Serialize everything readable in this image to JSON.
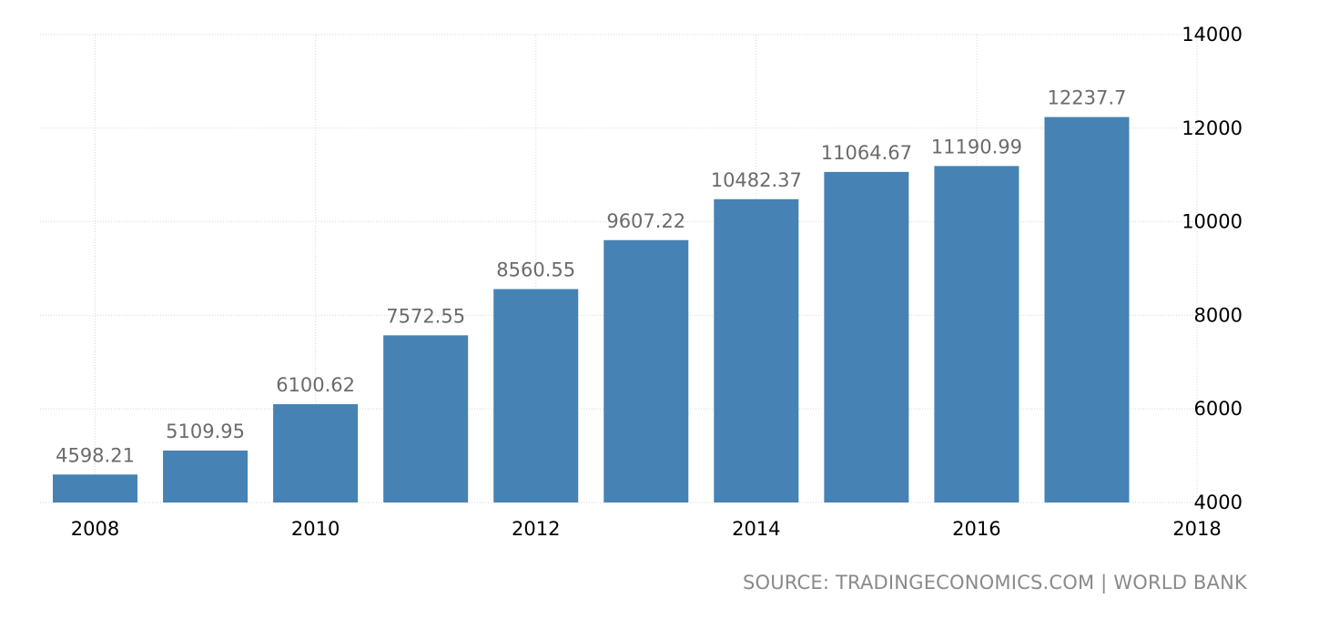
{
  "chart_data": {
    "type": "bar",
    "x": [
      2008,
      2009,
      2010,
      2011,
      2012,
      2013,
      2014,
      2015,
      2016,
      2017
    ],
    "values": [
      4598.21,
      5109.95,
      6100.62,
      7572.55,
      8560.55,
      9607.22,
      10482.37,
      11064.67,
      11190.99,
      12237.7
    ],
    "value_labels": [
      "4598.21",
      "5109.95",
      "6100.62",
      "7572.55",
      "8560.55",
      "9607.22",
      "10482.37",
      "11064.67",
      "11190.99",
      "12237.7"
    ],
    "x_ticks": [
      "2008",
      "2010",
      "2012",
      "2014",
      "2016",
      "2018"
    ],
    "y_ticks": [
      "4000",
      "6000",
      "8000",
      "10000",
      "12000",
      "14000"
    ],
    "ylim": [
      4000,
      14000
    ],
    "xlim": [
      2007.5,
      2018
    ],
    "y_axis_side": "right",
    "grid": true,
    "bar_color": "#4682b4",
    "title": "",
    "xlabel": "",
    "ylabel": ""
  },
  "source": "SOURCE: TRADINGECONOMICS.COM | WORLD BANK"
}
